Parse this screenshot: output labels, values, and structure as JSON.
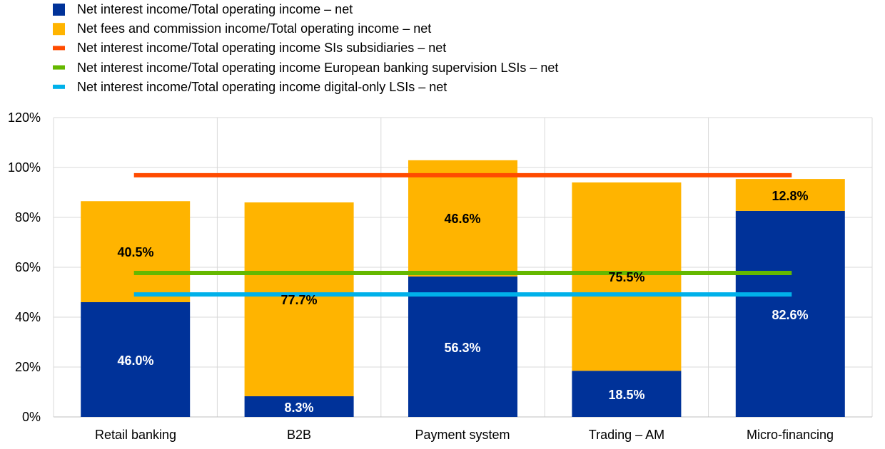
{
  "chart_data": {
    "type": "bar",
    "stacked": true,
    "categories": [
      "Retail banking",
      "B2B",
      "Payment system",
      "Trading – AM",
      "Micro-financing"
    ],
    "series": [
      {
        "name": "Net interest income/Total operating income – net",
        "kind": "bar",
        "color": "#003299",
        "label_color": "#ffffff",
        "values": [
          46.0,
          8.3,
          56.3,
          18.5,
          82.6
        ],
        "labels": [
          "46.0%",
          "8.3%",
          "56.3%",
          "18.5%",
          "82.6%"
        ]
      },
      {
        "name": "Net fees and commission income/Total operating income – net",
        "kind": "bar",
        "color": "#FFB400",
        "label_color": "#000000",
        "values": [
          40.5,
          77.7,
          46.6,
          75.5,
          12.8
        ],
        "labels": [
          "40.5%",
          "77.7%",
          "46.6%",
          "75.5%",
          "12.8%"
        ]
      },
      {
        "name": "Net interest income/Total operating income SIs subsidiaries – net",
        "kind": "line",
        "color": "#FF4B00",
        "value": 96.9
      },
      {
        "name": "Net interest income/Total operating income European banking supervision LSIs – net",
        "kind": "line",
        "color": "#65B800",
        "value": 57.7
      },
      {
        "name": "Net interest income/Total operating income digital-only LSIs – net",
        "kind": "line",
        "color": "#00B1EA",
        "value": 49.1
      }
    ],
    "yticks": [
      "0%",
      "20%",
      "40%",
      "60%",
      "80%",
      "100%",
      "120%"
    ],
    "ylim": [
      0,
      120
    ],
    "grid": true,
    "legend": "top-left"
  }
}
